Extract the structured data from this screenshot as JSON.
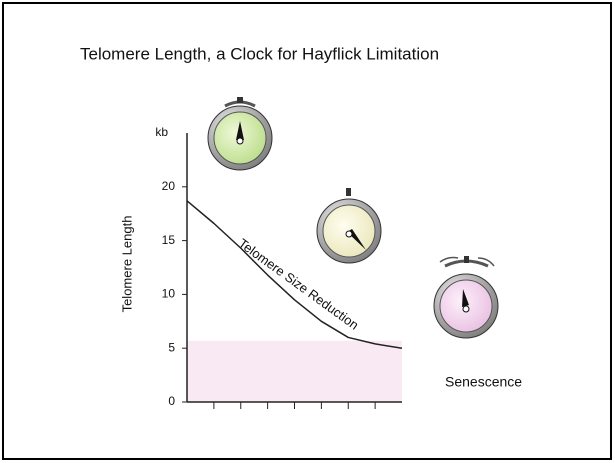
{
  "chart_data": {
    "type": "line",
    "title": "Telomere Length, a Clock for Hayflick Limitation",
    "y_label": "Telomere Length",
    "y_unit": "kb",
    "annotations": [
      "Telomere Size Reduction",
      "Senescence"
    ],
    "x": [
      0,
      1,
      2,
      3,
      4,
      5,
      6,
      7,
      8
    ],
    "values": [
      18.7,
      16.6,
      14.3,
      11.8,
      9.5,
      7.5,
      6.0,
      5.4,
      5.0
    ],
    "color": "#222222",
    "xlim": [
      0,
      8
    ],
    "xticks": [
      1,
      2,
      3,
      4,
      5,
      6,
      7
    ],
    "ylim": [
      0,
      25
    ],
    "yticks": [
      0,
      5,
      10,
      15,
      20
    ],
    "shaded_band": {
      "from": 0,
      "to": 5.7,
      "color": "#f9e9f2"
    }
  }
}
